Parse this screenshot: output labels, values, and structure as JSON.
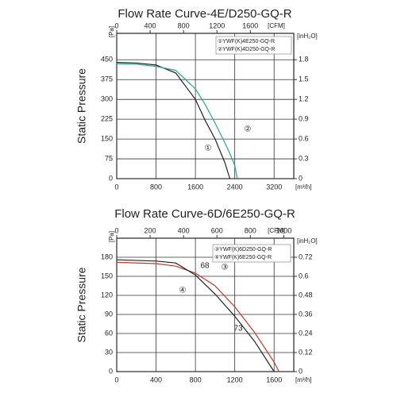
{
  "chart_data": [
    {
      "type": "line",
      "title": "Flow Rate Curve-4E/D250-GQ-R",
      "y_label": "Static Pressure",
      "y_unit": "[Pa]",
      "y2_unit": "[inH₂O]",
      "x_unit": "[m³/h]",
      "x2_unit": "[CFM]",
      "x": [
        0,
        400,
        800,
        1200,
        1600,
        1800,
        2000,
        2200,
        2300,
        2400,
        2450
      ],
      "series": [
        {
          "name": "①YWF(K)4E250-GQ-R",
          "color": "#222222",
          "values": [
            440,
            438,
            430,
            400,
            300,
            220,
            150,
            60,
            0,
            null,
            null
          ]
        },
        {
          "name": "②YWF(K)4D250-GQ-R",
          "color": "#2aa58a",
          "values": [
            435,
            433,
            425,
            410,
            340,
            280,
            210,
            135,
            95,
            50,
            0
          ]
        }
      ],
      "annotations": [
        "①",
        "②"
      ],
      "xlim": [
        0,
        3600
      ],
      "xticks": [
        0,
        800,
        1600,
        2400,
        3200
      ],
      "x2lim": [
        0,
        2120
      ],
      "x2ticks": [
        0,
        400,
        800,
        1200,
        1600
      ],
      "ylim": [
        0,
        550
      ],
      "yticks": [
        0,
        75,
        150,
        225,
        300,
        375,
        450
      ],
      "y2lim": [
        0,
        2.2
      ],
      "y2ticks": [
        0,
        0.3,
        0.6,
        0.9,
        1.2,
        1.5,
        1.8
      ],
      "grid": true
    },
    {
      "type": "line",
      "title": "Flow Rate Curve-6D/6E250-GQ-R",
      "y_label": "Static Pressure",
      "y_unit": "[Pa]",
      "y2_unit": "[inH₂O]",
      "x_unit": "[m³/h]",
      "x2_unit": "[CFM]",
      "x": [
        0,
        400,
        600,
        800,
        1000,
        1200,
        1400,
        1600,
        1650
      ],
      "series": [
        {
          "name": "③YWF(K)6D250-GQ-R",
          "color": "#c0392b",
          "values": [
            172,
            170,
            166,
            155,
            135,
            102,
            62,
            15,
            0
          ]
        },
        {
          "name": "④YWF(K)6E250-GQ-R",
          "color": "#222222",
          "values": [
            176,
            174,
            171,
            152,
            122,
            87,
            48,
            0,
            null
          ]
        }
      ],
      "annotations": [
        "68",
        "73",
        "③",
        "④"
      ],
      "xlim": [
        0,
        1800
      ],
      "xticks": [
        0,
        400,
        800,
        1200,
        1600
      ],
      "x2lim": [
        0,
        1060
      ],
      "x2ticks": [
        0,
        200,
        400,
        600,
        800,
        1000
      ],
      "ylim": [
        0,
        210
      ],
      "yticks": [
        0,
        30,
        60,
        90,
        120,
        150,
        180
      ],
      "y2lim": [
        0,
        0.84
      ],
      "y2ticks": [
        0,
        0.12,
        0.24,
        0.36,
        0.48,
        0.6,
        0.72
      ],
      "grid": true
    }
  ]
}
